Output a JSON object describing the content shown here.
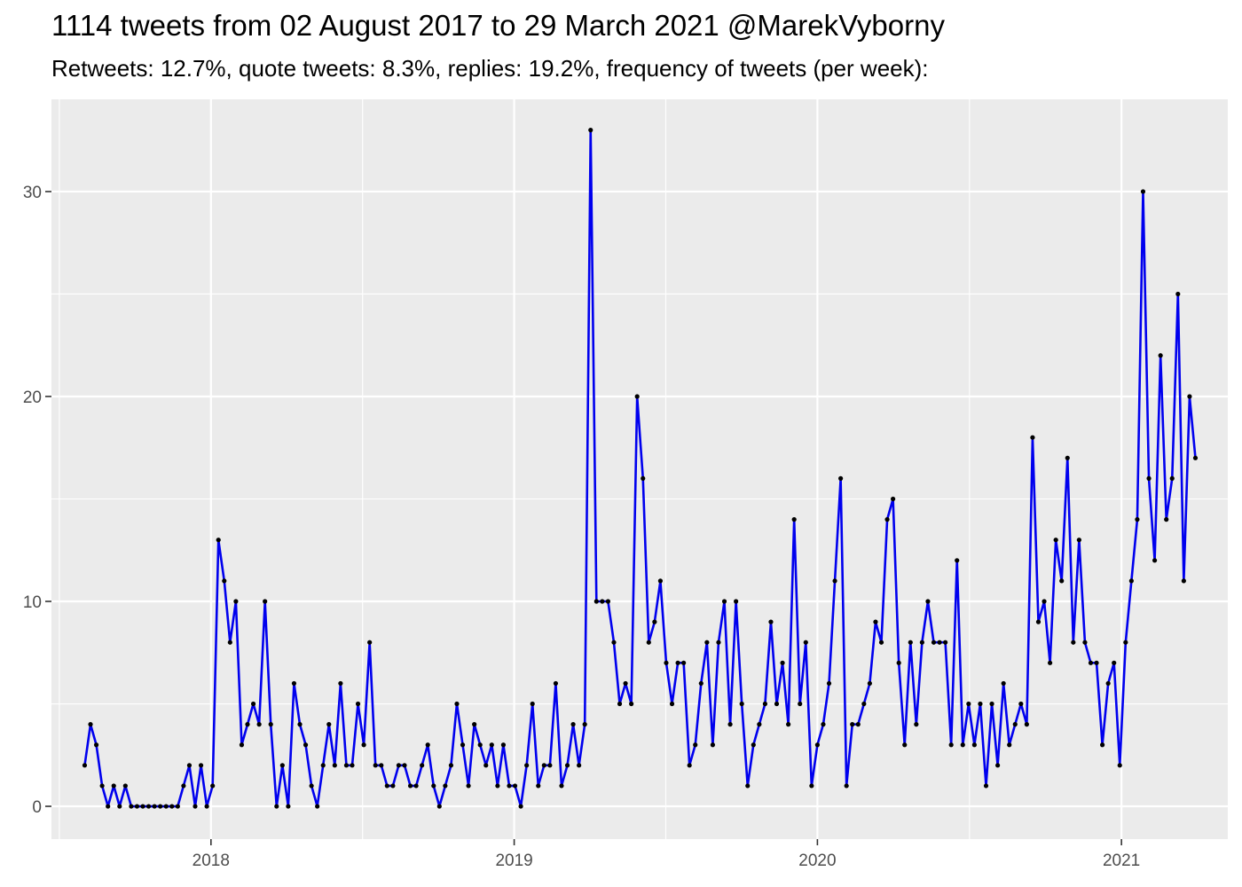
{
  "chart_data": {
    "type": "line",
    "title": "1114 tweets from 02 August 2017 to 29 March 2021 @MarekVyborny",
    "subtitle": "Retweets: 12.7%, quote tweets: 8.3%, replies: 19.2%, frequency of tweets (per week):",
    "xlabel": "",
    "ylabel": "",
    "x_start": "2017-08-02",
    "x_step_days": 7,
    "x_ticks": [
      "2018",
      "2019",
      "2020",
      "2021"
    ],
    "y_ticks": [
      "0",
      "10",
      "20",
      "30"
    ],
    "xlim": [
      "2017-06-23",
      "2021-05-09"
    ],
    "ylim": [
      -1.6,
      34.5
    ],
    "grid": true,
    "line_color": "#0000ee",
    "point_color": "#000000",
    "panel_color": "#ebebeb",
    "values": [
      2,
      4,
      3,
      1,
      0,
      1,
      0,
      1,
      0,
      0,
      0,
      0,
      0,
      0,
      0,
      0,
      0,
      1,
      2,
      0,
      2,
      0,
      1,
      13,
      11,
      8,
      10,
      3,
      4,
      5,
      4,
      10,
      4,
      0,
      2,
      0,
      6,
      4,
      3,
      1,
      0,
      2,
      4,
      2,
      6,
      2,
      2,
      5,
      3,
      8,
      2,
      2,
      1,
      1,
      2,
      2,
      1,
      1,
      2,
      3,
      1,
      0,
      1,
      2,
      5,
      3,
      1,
      4,
      3,
      2,
      3,
      1,
      3,
      1,
      1,
      0,
      2,
      5,
      1,
      2,
      2,
      6,
      1,
      2,
      4,
      2,
      4,
      33,
      10,
      10,
      10,
      8,
      5,
      6,
      5,
      20,
      16,
      8,
      9,
      11,
      7,
      5,
      7,
      7,
      2,
      3,
      6,
      8,
      3,
      8,
      10,
      4,
      10,
      5,
      1,
      3,
      4,
      5,
      9,
      5,
      7,
      4,
      14,
      5,
      8,
      1,
      3,
      4,
      6,
      11,
      16,
      1,
      4,
      4,
      5,
      6,
      9,
      8,
      14,
      15,
      7,
      3,
      8,
      4,
      8,
      10,
      8,
      8,
      8,
      3,
      12,
      3,
      5,
      3,
      5,
      1,
      5,
      2,
      6,
      3,
      4,
      5,
      4,
      18,
      9,
      10,
      7,
      13,
      11,
      17,
      8,
      13,
      8,
      7,
      7,
      3,
      6,
      7,
      2,
      8,
      11,
      14,
      30,
      16,
      12,
      22,
      14,
      16,
      25,
      11,
      20,
      17
    ]
  }
}
